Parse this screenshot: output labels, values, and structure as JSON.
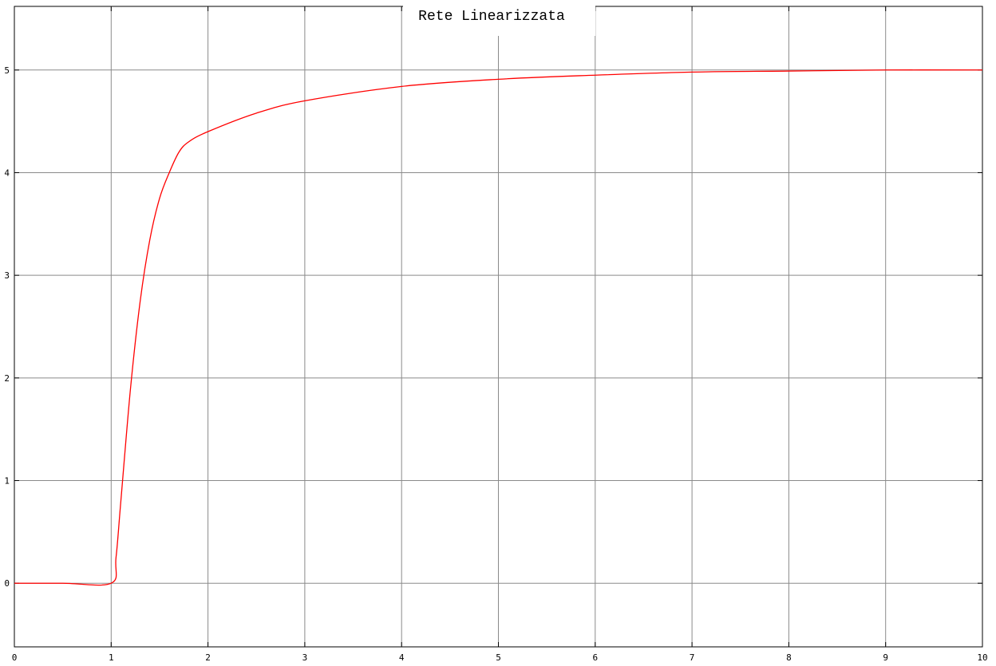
{
  "chart_data": {
    "type": "line",
    "title": "Rete Linearizzata",
    "xlabel": "",
    "ylabel": "",
    "xlim": [
      0,
      10
    ],
    "ylim": [
      -0.62,
      5.62
    ],
    "x_ticks": [
      "0",
      "1",
      "2",
      "3",
      "4",
      "5",
      "6",
      "7",
      "8",
      "9",
      "10"
    ],
    "y_ticks": [
      "0",
      "1",
      "2",
      "3",
      "4",
      "5"
    ],
    "grid": true,
    "legend": "none",
    "series": [
      {
        "color": "#ff0000",
        "x": [
          0,
          0.5,
          1.0,
          1.05,
          1.1,
          1.2,
          1.3,
          1.4,
          1.5,
          1.6,
          1.7,
          1.8,
          2.0,
          2.5,
          3.0,
          4.0,
          5.0,
          6.0,
          7.0,
          8.0,
          9.0,
          10.0
        ],
        "y": [
          0,
          0,
          0,
          0.25,
          0.8,
          1.9,
          2.75,
          3.35,
          3.75,
          4.0,
          4.2,
          4.3,
          4.4,
          4.58,
          4.7,
          4.84,
          4.91,
          4.95,
          4.98,
          4.99,
          5.0,
          5.0
        ]
      }
    ]
  }
}
